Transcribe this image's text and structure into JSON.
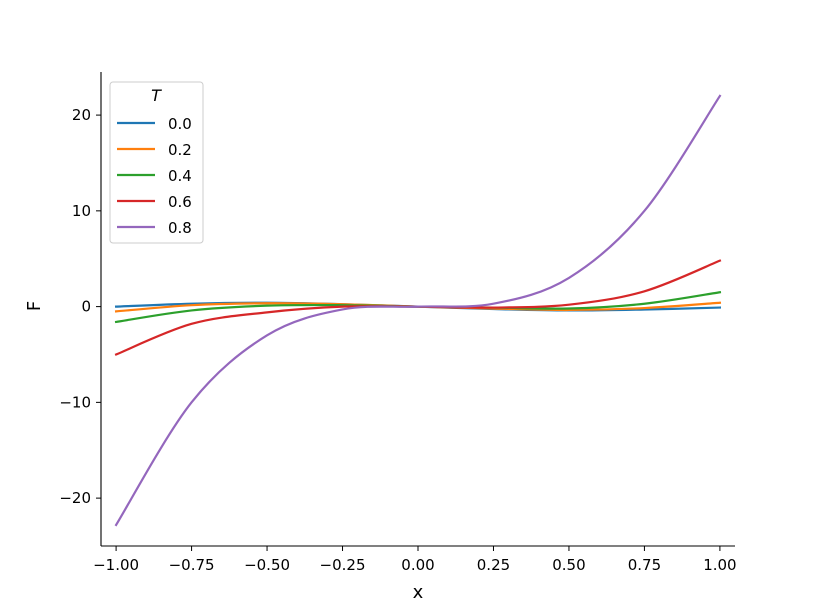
{
  "chart_data": {
    "type": "line",
    "xlabel": "x",
    "ylabel": "F",
    "xlim": [
      -1.05,
      1.05
    ],
    "ylim": [
      -25,
      24.5
    ],
    "xticks": [
      -1.0,
      -0.75,
      -0.5,
      -0.25,
      0.0,
      0.25,
      0.5,
      0.75,
      1.0
    ],
    "xtick_labels": [
      "−1.00",
      "−0.75",
      "−0.50",
      "−0.25",
      "0.00",
      "0.25",
      "0.50",
      "0.75",
      "1.00"
    ],
    "yticks": [
      -20,
      -10,
      0,
      10,
      20
    ],
    "ytick_labels": [
      "−20",
      "−10",
      "0",
      "10",
      "20"
    ],
    "grid": false,
    "legend": {
      "title": "T",
      "placement": "top-left"
    },
    "x": [
      -1.0,
      -0.75,
      -0.5,
      -0.25,
      0.0,
      0.25,
      0.5,
      0.75,
      1.0
    ],
    "series": [
      {
        "name": "0.0",
        "color": "#1f77b4",
        "values": [
          0.0,
          0.3,
          0.4,
          0.25,
          0.0,
          -0.25,
          -0.4,
          -0.3,
          -0.1
        ]
      },
      {
        "name": "0.2",
        "color": "#ff7f0e",
        "values": [
          -0.5,
          0.15,
          0.35,
          0.25,
          0.0,
          -0.2,
          -0.35,
          -0.15,
          0.4
        ]
      },
      {
        "name": "0.4",
        "color": "#2ca02c",
        "values": [
          -1.6,
          -0.4,
          0.1,
          0.15,
          0.0,
          -0.1,
          -0.2,
          0.3,
          1.5
        ]
      },
      {
        "name": "0.6",
        "color": "#d62728",
        "values": [
          -5.0,
          -1.8,
          -0.6,
          0.0,
          0.0,
          -0.1,
          0.2,
          1.6,
          4.8
        ]
      },
      {
        "name": "0.8",
        "color": "#9467bd",
        "values": [
          -22.8,
          -10.0,
          -3.0,
          -0.3,
          0.0,
          0.3,
          3.0,
          10.0,
          22.0
        ]
      }
    ]
  }
}
